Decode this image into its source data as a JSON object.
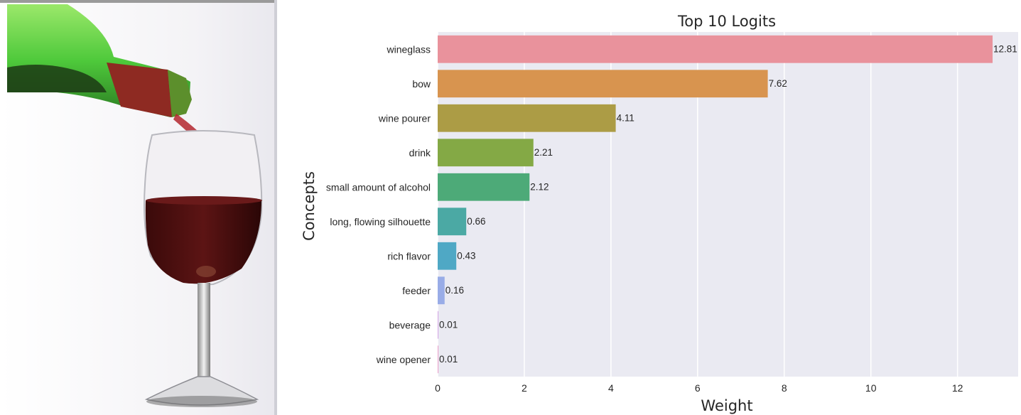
{
  "image": {
    "subject": "wine-pour-photo"
  },
  "chart_data": {
    "type": "bar",
    "orientation": "horizontal",
    "title": "Top 10 Logits",
    "xlabel": "Weight",
    "ylabel": "Concepts",
    "categories": [
      "wineglass",
      "bow",
      "wine pourer",
      "drink",
      "small amount of alcohol",
      "long, flowing silhouette",
      "rich flavor",
      "feeder",
      "beverage",
      "wine opener"
    ],
    "values": [
      12.81,
      7.62,
      4.11,
      2.21,
      2.12,
      0.66,
      0.43,
      0.16,
      0.01,
      0.01
    ],
    "value_labels": [
      "12.81",
      "7.62",
      "4.11",
      "2.21",
      "2.12",
      "0.66",
      "0.43",
      "0.16",
      "0.01",
      "0.01"
    ],
    "colors": [
      "#e9929c",
      "#d8944f",
      "#ac9c45",
      "#84a945",
      "#4daa78",
      "#4ba9a4",
      "#4fa8c5",
      "#99ace7",
      "#d3a4e5",
      "#e99dc9"
    ],
    "xlim": [
      0,
      13.4
    ],
    "xticks": [
      0,
      2,
      4,
      6,
      8,
      10,
      12
    ],
    "xtick_labels": [
      "0",
      "2",
      "4",
      "6",
      "8",
      "10",
      "12"
    ],
    "grid": true,
    "background": "#eaeaf2"
  }
}
